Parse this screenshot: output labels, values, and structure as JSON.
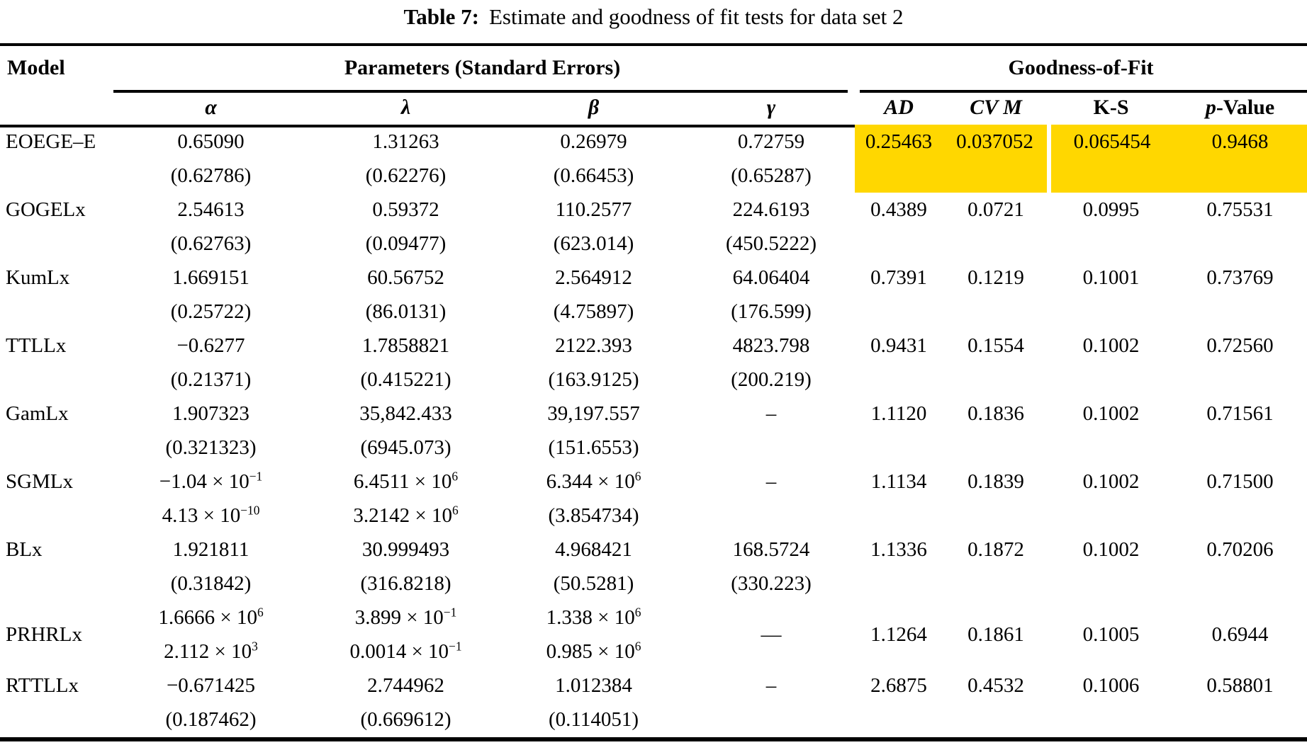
{
  "title": {
    "label": "Table 7:",
    "text": "Estimate and goodness of fit tests for data set 2"
  },
  "header": {
    "model": "Model",
    "params_group": "Parameters (Standard Errors)",
    "gof_group": "Goodness-of-Fit",
    "param_cols": [
      "α",
      "λ",
      "β",
      "γ"
    ],
    "gof_cols": [
      "AD",
      "CV M",
      "K-S"
    ],
    "p_value_italic": "p",
    "p_value_rest": "-Value"
  },
  "highlight_color": "#FFD700",
  "rows": [
    {
      "model": "EOEGE–E",
      "valign": "top",
      "highlight": true,
      "line1": [
        "0.65090",
        "1.31263",
        "0.26979",
        "0.72759"
      ],
      "line2": [
        "(0.62786)",
        "(0.62276)",
        "(0.66453)",
        "(0.65287)"
      ],
      "gof": [
        "0.25463",
        "0.037052",
        "0.065454",
        "0.9468"
      ]
    },
    {
      "model": "GOGELx",
      "valign": "top",
      "highlight": false,
      "line1": [
        "2.54613",
        "0.59372",
        "110.2577",
        "224.6193"
      ],
      "line2": [
        "(0.62763)",
        "(0.09477)",
        "(623.014)",
        "(450.5222)"
      ],
      "gof": [
        "0.4389",
        "0.0721",
        "0.0995",
        "0.75531"
      ]
    },
    {
      "model": "KumLx",
      "valign": "top",
      "highlight": false,
      "line1": [
        "1.669151",
        "60.56752",
        "2.564912",
        "64.06404"
      ],
      "line2": [
        "(0.25722)",
        "(86.0131)",
        "(4.75897)",
        "(176.599)"
      ],
      "gof": [
        "0.7391",
        "0.1219",
        "0.1001",
        "0.73769"
      ]
    },
    {
      "model": "TTLLx",
      "valign": "top",
      "highlight": false,
      "line1": [
        "−0.6277",
        "1.7858821",
        "2122.393",
        "4823.798"
      ],
      "line2": [
        "(0.21371)",
        "(0.415221)",
        "(163.9125)",
        "(200.219)"
      ],
      "gof": [
        "0.9431",
        "0.1554",
        "0.1002",
        "0.72560"
      ]
    },
    {
      "model": "GamLx",
      "valign": "top",
      "highlight": false,
      "line1": [
        "1.907323",
        "35,842.433",
        "39,197.557",
        "–"
      ],
      "line2": [
        "(0.321323)",
        "(6945.073)",
        "(151.6553)",
        ""
      ],
      "gof": [
        "1.1120",
        "0.1836",
        "0.1002",
        "0.71561"
      ]
    },
    {
      "model": "SGMLx",
      "valign": "top",
      "highlight": false,
      "line1": [
        "−1.04 × 10^{−1}",
        "6.4511 × 10^{6}",
        "6.344 × 10^{6}",
        "–"
      ],
      "line2": [
        "4.13 × 10^{−10}",
        "3.2142 × 10^{6}",
        "(3.854734)",
        ""
      ],
      "gof": [
        "1.1134",
        "0.1839",
        "0.1002",
        "0.71500"
      ]
    },
    {
      "model": "BLx",
      "valign": "top",
      "highlight": false,
      "line1": [
        "1.921811",
        "30.999493",
        "4.968421",
        "168.5724"
      ],
      "line2": [
        "(0.31842)",
        "(316.8218)",
        "(50.5281)",
        "(330.223)"
      ],
      "gof": [
        "1.1336",
        "0.1872",
        "0.1002",
        "0.70206"
      ]
    },
    {
      "model": "PRHRLx",
      "valign": "middle",
      "highlight": false,
      "line1": [
        "1.6666 × 10^{6}",
        "3.899 × 10^{−1}",
        "1.338 × 10^{6}"
      ],
      "line2": [
        "2.112 × 10^{3}",
        "0.0014 × 10^{−1}",
        "0.985 × 10^{6}"
      ],
      "gamma_center": "—",
      "gof": [
        "1.1264",
        "0.1861",
        "0.1005",
        "0.6944"
      ]
    },
    {
      "model": "RTTLLx",
      "valign": "top",
      "highlight": false,
      "line1": [
        "−0.671425",
        "2.744962",
        "1.012384",
        "–"
      ],
      "line2": [
        "(0.187462)",
        "(0.669612)",
        "(0.114051)",
        ""
      ],
      "gof": [
        "2.6875",
        "0.4532",
        "0.1006",
        "0.58801"
      ]
    }
  ]
}
